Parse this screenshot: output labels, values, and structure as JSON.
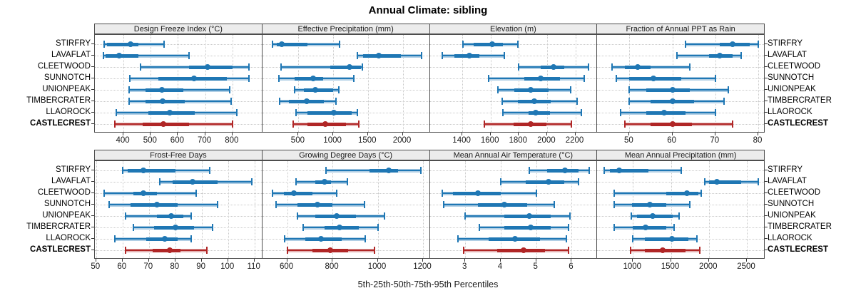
{
  "title": "Annual Climate: sibling",
  "caption": "5th-25th-50th-75th-95th Percentiles",
  "sites": [
    "STIRFRY",
    "LAVAFLAT",
    "CLEETWOOD",
    "SUNNOTCH",
    "UNIONPEAK",
    "TIMBERCRATER",
    "LLAOROCK",
    "CASTLECREST"
  ],
  "highlight_site": "CASTLECREST",
  "colors": {
    "blue": "#1f77b4",
    "blue_light": "#b1cfe5",
    "red": "#b02626",
    "red_light": "#e3b3b3",
    "strip_bg": "#ececec",
    "grid": "#c9c9c9",
    "panel_border": "#4d4d4d"
  },
  "chart_data": [
    {
      "type": "dotplot-percentiles",
      "title": "Design Freeze Index (°C)",
      "percentile_labels": [
        "5th",
        "25th",
        "50th",
        "75th",
        "95th"
      ],
      "xlim": [
        295,
        910
      ],
      "ticks": [
        400,
        500,
        600,
        700,
        800
      ],
      "series": [
        {
          "name": "STIRFRY",
          "values": [
            330,
            340,
            425,
            455,
            550
          ]
        },
        {
          "name": "LAVAFLAT",
          "values": [
            327,
            335,
            385,
            455,
            640
          ]
        },
        {
          "name": "CLEETWOOD",
          "values": [
            462,
            640,
            710,
            800,
            860
          ]
        },
        {
          "name": "SUNNOTCH",
          "values": [
            422,
            527,
            658,
            780,
            860
          ]
        },
        {
          "name": "UNIONPEAK",
          "values": [
            420,
            480,
            542,
            620,
            790
          ]
        },
        {
          "name": "TIMBERCRATER",
          "values": [
            421,
            482,
            543,
            624,
            795
          ]
        },
        {
          "name": "LLAOROCK",
          "values": [
            374,
            492,
            570,
            662,
            815
          ]
        },
        {
          "name": "CASTLECREST",
          "values": [
            367,
            470,
            547,
            640,
            800
          ]
        }
      ]
    },
    {
      "type": "dotplot-percentiles",
      "title": "Effective Precipitation (mm)",
      "percentile_labels": [
        "5th",
        "25th",
        "50th",
        "75th",
        "95th"
      ],
      "xlim": [
        -20,
        2390
      ],
      "ticks": [
        500,
        1000,
        1500,
        2000
      ],
      "series": [
        {
          "name": "STIRFRY",
          "values": [
            130,
            185,
            260,
            630,
            1095
          ]
        },
        {
          "name": "LAVAFLAT",
          "values": [
            1350,
            1425,
            1660,
            1970,
            2275
          ]
        },
        {
          "name": "CLEETWOOD",
          "values": [
            245,
            955,
            1240,
            1400,
            1420
          ]
        },
        {
          "name": "SUNNOTCH",
          "values": [
            220,
            440,
            710,
            855,
            1300
          ]
        },
        {
          "name": "UNIONPEAK",
          "values": [
            440,
            580,
            740,
            1000,
            1080
          ]
        },
        {
          "name": "TIMBERCRATER",
          "values": [
            230,
            360,
            615,
            870,
            1045
          ]
        },
        {
          "name": "LLAOROCK",
          "values": [
            460,
            630,
            1010,
            1265,
            1345
          ]
        },
        {
          "name": "CASTLECREST",
          "values": [
            420,
            630,
            890,
            1180,
            1370
          ]
        }
      ]
    },
    {
      "type": "dotplot-percentiles",
      "title": "Elevation (m)",
      "percentile_labels": [
        "5th",
        "25th",
        "50th",
        "75th",
        "95th"
      ],
      "xlim": [
        1170,
        2355
      ],
      "ticks": [
        1400,
        1600,
        1800,
        2000,
        2200
      ],
      "series": [
        {
          "name": "STIRFRY",
          "values": [
            1405,
            1480,
            1610,
            1690,
            1795
          ]
        },
        {
          "name": "LAVAFLAT",
          "values": [
            1260,
            1345,
            1450,
            1520,
            1695
          ]
        },
        {
          "name": "CLEETWOOD",
          "values": [
            1800,
            1955,
            2045,
            2120,
            2295
          ]
        },
        {
          "name": "SUNNOTCH",
          "values": [
            1585,
            1840,
            1955,
            2090,
            2265
          ]
        },
        {
          "name": "UNIONPEAK",
          "values": [
            1650,
            1770,
            1885,
            2010,
            2165
          ]
        },
        {
          "name": "TIMBERCRATER",
          "values": [
            1680,
            1795,
            1910,
            2025,
            2210
          ]
        },
        {
          "name": "LLAOROCK",
          "values": [
            1685,
            1870,
            1920,
            2020,
            2240
          ]
        },
        {
          "name": "CASTLECREST",
          "values": [
            1555,
            1765,
            1885,
            1995,
            2170
          ]
        }
      ]
    },
    {
      "type": "dotplot-percentiles",
      "title": "Fraction of Annual PPT as Rain",
      "percentile_labels": [
        "5th",
        "25th",
        "50th",
        "75th",
        "95th"
      ],
      "xlim": [
        42.5,
        81.5
      ],
      "ticks": [
        50,
        60,
        70,
        80
      ],
      "series": [
        {
          "name": "STIRFRY",
          "values": [
            63,
            71,
            74,
            78,
            80
          ]
        },
        {
          "name": "LAVAFLAT",
          "values": [
            61,
            68.5,
            71,
            74,
            76
          ]
        },
        {
          "name": "CLEETWOOD",
          "values": [
            46,
            49,
            52,
            55,
            64
          ]
        },
        {
          "name": "SUNNOTCH",
          "values": [
            47,
            50,
            55.5,
            62,
            70
          ]
        },
        {
          "name": "UNIONPEAK",
          "values": [
            50,
            54,
            60,
            64,
            73
          ]
        },
        {
          "name": "TIMBERCRATER",
          "values": [
            50,
            55,
            60,
            65,
            72
          ]
        },
        {
          "name": "LLAOROCK",
          "values": [
            48,
            54,
            58,
            63,
            70
          ]
        },
        {
          "name": "CASTLECREST",
          "values": [
            49,
            55,
            60,
            64.5,
            74
          ]
        }
      ]
    },
    {
      "type": "dotplot-percentiles",
      "title": "Frost-Free Days",
      "percentile_labels": [
        "5th",
        "25th",
        "50th",
        "75th",
        "95th"
      ],
      "xlim": [
        49.5,
        113
      ],
      "ticks": [
        50,
        60,
        70,
        80,
        90,
        100,
        110
      ],
      "series": [
        {
          "name": "STIRFRY",
          "values": [
            60,
            62,
            68,
            80,
            93
          ]
        },
        {
          "name": "LAVAFLAT",
          "values": [
            74,
            79,
            86.5,
            96,
            109
          ]
        },
        {
          "name": "CLEETWOOD",
          "values": [
            53,
            64,
            68,
            73,
            88
          ]
        },
        {
          "name": "SUNNOTCH",
          "values": [
            55,
            63,
            73,
            81,
            96
          ]
        },
        {
          "name": "UNIONPEAK",
          "values": [
            61,
            73,
            78.5,
            83,
            86
          ]
        },
        {
          "name": "TIMBERCRATER",
          "values": [
            64,
            72,
            80,
            87,
            94
          ]
        },
        {
          "name": "LLAOROCK",
          "values": [
            57,
            69,
            76,
            81,
            86
          ]
        },
        {
          "name": "CASTLECREST",
          "values": [
            61,
            71.5,
            78,
            82,
            92
          ]
        }
      ]
    },
    {
      "type": "dotplot-percentiles",
      "title": "Growing Degree Days (°C)",
      "percentile_labels": [
        "5th",
        "25th",
        "50th",
        "75th",
        "95th"
      ],
      "xlim": [
        490,
        1230
      ],
      "ticks": [
        600,
        800,
        1000,
        1200
      ],
      "series": [
        {
          "name": "STIRFRY",
          "values": [
            770,
            965,
            1050,
            1090,
            1190
          ]
        },
        {
          "name": "LAVAFLAT",
          "values": [
            640,
            725,
            765,
            795,
            865
          ]
        },
        {
          "name": "CLEETWOOD",
          "values": [
            535,
            585,
            630,
            710,
            820
          ]
        },
        {
          "name": "SUNNOTCH",
          "values": [
            550,
            645,
            735,
            800,
            940
          ]
        },
        {
          "name": "UNIONPEAK",
          "values": [
            645,
            725,
            820,
            905,
            1030
          ]
        },
        {
          "name": "TIMBERCRATER",
          "values": [
            670,
            765,
            830,
            915,
            1000
          ]
        },
        {
          "name": "LLAOROCK",
          "values": [
            590,
            680,
            750,
            840,
            945
          ]
        },
        {
          "name": "CASTLECREST",
          "values": [
            600,
            710,
            790,
            870,
            985
          ]
        }
      ]
    },
    {
      "type": "dotplot-percentiles",
      "title": "Mean Annual Air Temperature (°C)",
      "percentile_labels": [
        "5th",
        "25th",
        "50th",
        "75th",
        "95th"
      ],
      "xlim": [
        2.0,
        6.72
      ],
      "ticks": [
        3,
        4,
        5,
        6
      ],
      "series": [
        {
          "name": "STIRFRY",
          "values": [
            4.8,
            5.3,
            5.8,
            6.2,
            6.5
          ]
        },
        {
          "name": "LAVAFLAT",
          "values": [
            4.0,
            4.7,
            5.35,
            5.8,
            6.2
          ]
        },
        {
          "name": "CLEETWOOD",
          "values": [
            2.35,
            2.65,
            3.35,
            4.0,
            5.0
          ]
        },
        {
          "name": "SUNNOTCH",
          "values": [
            2.4,
            3.35,
            4.1,
            4.75,
            5.5
          ]
        },
        {
          "name": "UNIONPEAK",
          "values": [
            3.0,
            4.1,
            4.8,
            5.4,
            5.95
          ]
        },
        {
          "name": "TIMBERCRATER",
          "values": [
            3.4,
            4.1,
            4.85,
            5.4,
            5.9
          ]
        },
        {
          "name": "LLAOROCK",
          "values": [
            2.8,
            3.65,
            4.4,
            5.1,
            5.85
          ]
        },
        {
          "name": "CASTLECREST",
          "values": [
            2.95,
            3.9,
            4.65,
            5.25,
            5.9
          ]
        }
      ]
    },
    {
      "type": "dotplot-percentiles",
      "title": "Mean Annual Precipitation (mm)",
      "percentile_labels": [
        "5th",
        "25th",
        "50th",
        "75th",
        "95th"
      ],
      "xlim": [
        530,
        2735
      ],
      "ticks": [
        1000,
        1500,
        2000,
        2500
      ],
      "series": [
        {
          "name": "STIRFRY",
          "values": [
            625,
            700,
            820,
            1200,
            1640
          ]
        },
        {
          "name": "LAVAFLAT",
          "values": [
            1950,
            2005,
            2110,
            2430,
            2655
          ]
        },
        {
          "name": "CLEETWOOD",
          "values": [
            755,
            1440,
            1710,
            1860,
            1900
          ]
        },
        {
          "name": "SUNNOTCH",
          "values": [
            755,
            985,
            1225,
            1440,
            1750
          ]
        },
        {
          "name": "UNIONPEAK",
          "values": [
            980,
            1050,
            1260,
            1520,
            1610
          ]
        },
        {
          "name": "TIMBERCRATER",
          "values": [
            750,
            1000,
            1165,
            1440,
            1540
          ]
        },
        {
          "name": "LLAOROCK",
          "values": [
            1000,
            1155,
            1510,
            1730,
            1840
          ]
        },
        {
          "name": "CASTLECREST",
          "values": [
            970,
            1160,
            1390,
            1690,
            1880
          ]
        }
      ]
    }
  ]
}
